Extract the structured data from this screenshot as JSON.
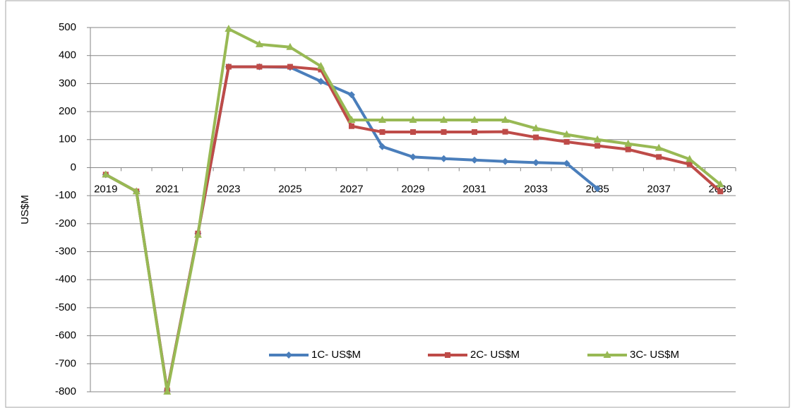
{
  "chart_data": {
    "type": "line",
    "y_label": "US$M",
    "categories": [
      "2019",
      null,
      "2021",
      null,
      "2023",
      null,
      "2025",
      null,
      "2027",
      null,
      "2029",
      null,
      "2031",
      null,
      "2033",
      null,
      "2035",
      null,
      "2037",
      null,
      "2039"
    ],
    "series": [
      {
        "name": "1C- US$M",
        "color": "#4a7ebb",
        "marker": "diamond",
        "values": [
          -25,
          -85,
          -795,
          -235,
          360,
          360,
          358,
          308,
          260,
          75,
          38,
          32,
          27,
          22,
          18,
          15,
          -75,
          null,
          null,
          null,
          null
        ]
      },
      {
        "name": "2C- US$M",
        "color": "#be4b48",
        "marker": "square",
        "values": [
          -25,
          -85,
          -795,
          -235,
          360,
          360,
          360,
          350,
          148,
          127,
          127,
          127,
          127,
          128,
          108,
          92,
          78,
          65,
          38,
          12,
          -85
        ]
      },
      {
        "name": "3C- US$M",
        "color": "#98b954",
        "marker": "triangle",
        "values": [
          -25,
          -85,
          -800,
          -240,
          495,
          440,
          430,
          362,
          170,
          170,
          170,
          170,
          170,
          170,
          140,
          118,
          100,
          85,
          70,
          30,
          -60
        ]
      }
    ],
    "ylim": [
      -800,
      500
    ],
    "yticks": [
      -800,
      -700,
      -600,
      -500,
      -400,
      -300,
      -200,
      -100,
      0,
      100,
      200,
      300,
      400,
      500
    ],
    "grid": true,
    "legend": "bottom"
  }
}
